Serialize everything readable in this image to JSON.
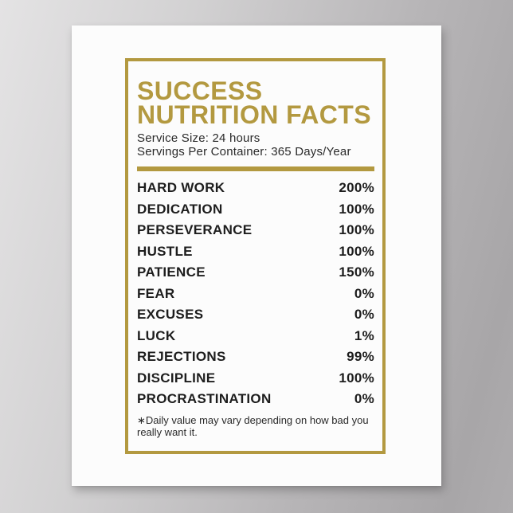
{
  "poster": {
    "title_line1": "SUCCESS",
    "title_line2": "NUTRITION FACTS",
    "serving_size_line": "Service Size: 24 hours",
    "servings_line": "Servings Per Container: 365 Days/Year",
    "facts": [
      {
        "label": "HARD WORK",
        "value": "200%"
      },
      {
        "label": "DEDICATION",
        "value": "100%"
      },
      {
        "label": "PERSEVERANCE",
        "value": "100%"
      },
      {
        "label": "HUSTLE",
        "value": "100%"
      },
      {
        "label": "PATIENCE",
        "value": "150%"
      },
      {
        "label": "FEAR",
        "value": "0%"
      },
      {
        "label": "EXCUSES",
        "value": "0%"
      },
      {
        "label": "LUCK",
        "value": "1%"
      },
      {
        "label": "REJECTIONS",
        "value": "99%"
      },
      {
        "label": "DISCIPLINE",
        "value": "100%"
      },
      {
        "label": "PROCRASTINATION",
        "value": "0%"
      }
    ],
    "footnote_line1": "∗Daily value may vary depending on how bad you",
    "footnote_line2": "really want it.",
    "colors": {
      "gold": "#b39940",
      "ink": "#1d1d1d",
      "paper": "#fcfcfc",
      "wall_light": "#e4e3e4",
      "wall_dark": "#a8a6a8"
    }
  }
}
